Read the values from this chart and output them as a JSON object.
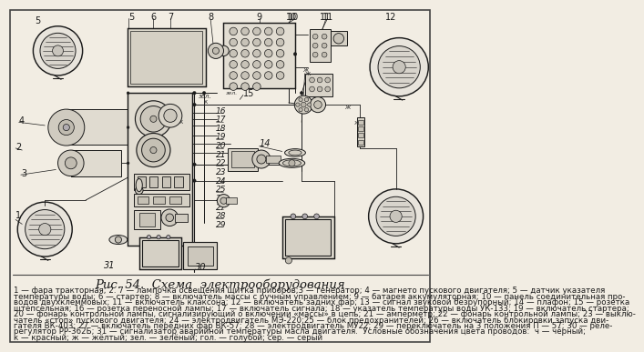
{
  "title": "Рис. 54.  Схема  электрооборудования",
  "title_fontsize": 9.5,
  "background_color": "#f2ede3",
  "text_color": "#1a1a1a",
  "line_color": "#1a1a1a",
  "caption_lines": [
    "1 — фара тракторная; 2. 7 — лампочка освещения щитка приборов;3 — генератор; 4 — магнето пускового двигателя; 5 — датчик указателя",
    "температуры воды; 6 — стартер; 8 — включатель массы с ручным управлением; 9 — батарея аккумуляторная; 10 — панель соединительная про-",
    "водов двухклеммовых; 11 — включатель клаксона; 12 — включатель задних фар; 13 — сигнал звуковой безрупорный; 14 — плафон; 15 — розетка",
    "штепсельная; 16 — розетка переносной лампы; 17 — включатель сигнала; 18 — указатель температуры воды УК-133; 19 — включатель стартера;",
    "20 — фонарь контрольной лампы, сигнализирующий о включении «массы» в цепь; 21 — амперметр; 22 — фонарь контрольной лампы; 23 — выклю-",
    "чатель «стоп» пускового двигателя; 24 — электродвигатель МЭ-220;25 — блок предохранителей; 26 — включатель блокировки запуска дви-",
    "гателя ВК-403; 27 — включатель передних фар ВК-57; 28 — электродвигатель МУ22; 29 — переключатель на 3 положения П — 57; 30 — реле-",
    "регулятор РР-362Б; 31 — сигнализатор аварийной температуры масла двигателя.  Условные обозначения цвета проводов:  ч — чёрный;",
    "к — красный; ж — жёлтый; зел. — зелёный; гол. — голубой; сер. — серый"
  ],
  "caption_fontsize": 6.2,
  "background_color_diagram": "#ffffff",
  "lc": "#1a1a1a",
  "lw": 0.7
}
